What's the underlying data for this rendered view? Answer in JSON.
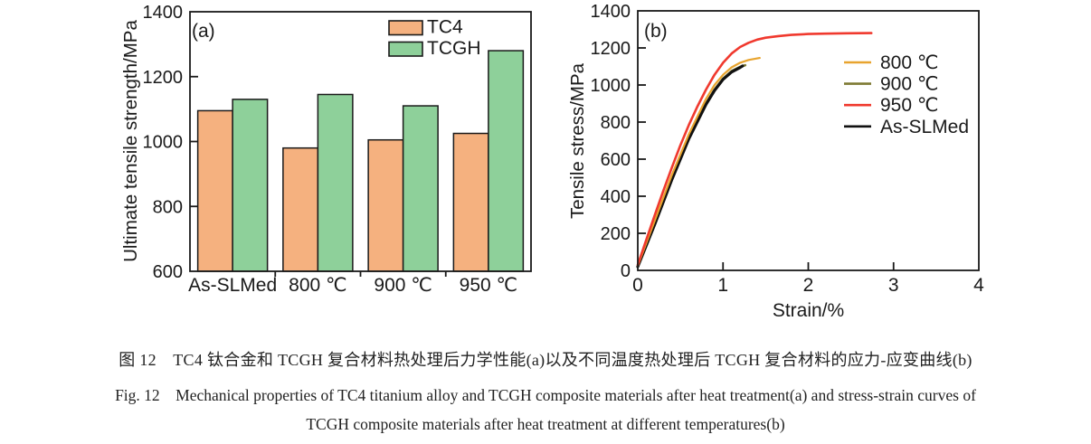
{
  "figure": {
    "caption_cn": "图 12 TC4 钛合金和 TCGH 复合材料热处理后力学性能(a)以及不同温度热处理后 TCGH 复合材料的应力-应变曲线(b)",
    "caption_en_line1": "Fig. 12 Mechanical properties of TC4 titanium alloy and TCGH composite materials after heat treatment(a) and stress-strain curves of",
    "caption_en_line2": "TCGH composite materials after heat treatment at different temperatures(b)"
  },
  "colors": {
    "axis": "#1a1a1a",
    "tc4_bar": "#f5b17f",
    "tcgh_bar": "#8ed09a",
    "curve_800": "#e8a42e",
    "curve_900": "#7e7a33",
    "curve_950": "#f0392e",
    "curve_asslmed": "#111111"
  },
  "chart_data": [
    {
      "id": "a",
      "type": "bar",
      "panel_label": "(a)",
      "ylabel": "Ultimate tensile strength/MPa",
      "xlabel": "",
      "ylim": [
        600,
        1400
      ],
      "yticks": [
        600,
        800,
        1000,
        1200,
        1400
      ],
      "categories": [
        "As-SLMed",
        "800 ℃",
        "900 ℃",
        "950 ℃"
      ],
      "series": [
        {
          "name": "TC4",
          "color": "#f5b17f",
          "values": [
            1095,
            980,
            1005,
            1025
          ]
        },
        {
          "name": "TCGH",
          "color": "#8ed09a",
          "values": [
            1130,
            1145,
            1110,
            1280
          ]
        }
      ],
      "legend_position": "top-right",
      "grid": false
    },
    {
      "id": "b",
      "type": "line",
      "panel_label": "(b)",
      "ylabel": "Tensile stress/MPa",
      "xlabel": "Strain/%",
      "xlim": [
        0,
        4
      ],
      "xticks": [
        0,
        1,
        2,
        3,
        4
      ],
      "ylim": [
        0,
        1400
      ],
      "yticks": [
        0,
        200,
        400,
        600,
        800,
        1000,
        1200,
        1400
      ],
      "series": [
        {
          "name": "800 ℃",
          "color": "#e8a42e",
          "stroke_width": 2.2,
          "points": [
            [
              0,
              25
            ],
            [
              0.2,
              270
            ],
            [
              0.4,
              515
            ],
            [
              0.6,
              735
            ],
            [
              0.8,
              925
            ],
            [
              0.9,
              1000
            ],
            [
              1.0,
              1055
            ],
            [
              1.1,
              1095
            ],
            [
              1.2,
              1120
            ],
            [
              1.3,
              1135
            ],
            [
              1.43,
              1146
            ]
          ]
        },
        {
          "name": "900 ℃",
          "color": "#7e7a33",
          "stroke_width": 2.6,
          "points": [
            [
              0,
              20
            ],
            [
              0.2,
              255
            ],
            [
              0.4,
              495
            ],
            [
              0.6,
              715
            ],
            [
              0.8,
              900
            ],
            [
              0.9,
              975
            ],
            [
              1.0,
              1035
            ],
            [
              1.1,
              1075
            ],
            [
              1.2,
              1098
            ],
            [
              1.26,
              1107
            ]
          ]
        },
        {
          "name": "950 ℃",
          "color": "#f0392e",
          "stroke_width": 2.6,
          "points": [
            [
              0,
              30
            ],
            [
              0.1,
              165
            ],
            [
              0.2,
              300
            ],
            [
              0.3,
              430
            ],
            [
              0.4,
              555
            ],
            [
              0.5,
              675
            ],
            [
              0.6,
              785
            ],
            [
              0.7,
              885
            ],
            [
              0.8,
              975
            ],
            [
              0.9,
              1055
            ],
            [
              1.0,
              1120
            ],
            [
              1.1,
              1170
            ],
            [
              1.2,
              1205
            ],
            [
              1.3,
              1228
            ],
            [
              1.4,
              1245
            ],
            [
              1.5,
              1255
            ],
            [
              1.65,
              1264
            ],
            [
              1.8,
              1270
            ],
            [
              2.0,
              1275
            ],
            [
              2.2,
              1277
            ],
            [
              2.45,
              1279
            ],
            [
              2.74,
              1280
            ]
          ]
        },
        {
          "name": "As-SLMed",
          "color": "#111111",
          "stroke_width": 3.2,
          "points": [
            [
              0,
              20
            ],
            [
              0.2,
              250
            ],
            [
              0.4,
              490
            ],
            [
              0.6,
              710
            ],
            [
              0.8,
              895
            ],
            [
              0.9,
              970
            ],
            [
              1.0,
              1030
            ],
            [
              1.1,
              1070
            ],
            [
              1.2,
              1094
            ],
            [
              1.23,
              1103
            ]
          ]
        }
      ],
      "draw_order": [
        1,
        3,
        0,
        2
      ],
      "legend_position": "right",
      "grid": false
    }
  ]
}
